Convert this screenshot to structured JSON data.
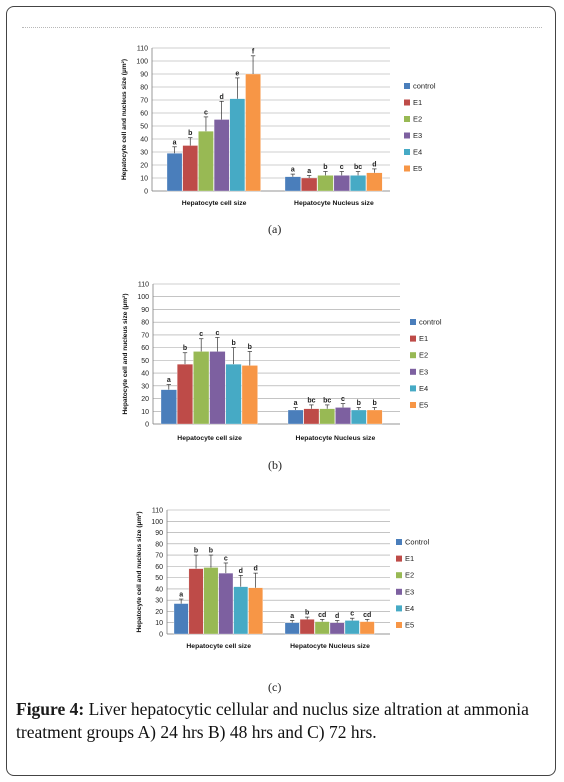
{
  "caption": {
    "title": "Figure 4:",
    "text": "Liver hepatocytic cellular and nuclus size altration at ammonia treatment groups A) 24 hrs B) 48 hrs and C) 72 hrs."
  },
  "panel_labels": [
    "(a)",
    "(b)",
    "(c)"
  ],
  "chart_data": [
    {
      "type": "bar",
      "ylabel": "Hepatocyte cell and nucleus size (µm²)",
      "ylim": [
        0,
        110
      ],
      "yticks": [
        0,
        10,
        20,
        30,
        40,
        50,
        60,
        70,
        80,
        90,
        100,
        110
      ],
      "categories": [
        "Hepatocyte cell size",
        "Hepatocyte Nucleus size"
      ],
      "legend_position": "right",
      "series": [
        {
          "name": "control",
          "color": "#4a7ebb",
          "values": [
            29,
            11
          ],
          "errors": [
            5,
            2
          ],
          "letters": [
            "a",
            "a"
          ]
        },
        {
          "name": "E1",
          "color": "#be4b48",
          "values": [
            35,
            10
          ],
          "errors": [
            6,
            2
          ],
          "letters": [
            "b",
            "a"
          ]
        },
        {
          "name": "E2",
          "color": "#98b954",
          "values": [
            46,
            12
          ],
          "errors": [
            11,
            3
          ],
          "letters": [
            "c",
            "b"
          ]
        },
        {
          "name": "E3",
          "color": "#7d60a0",
          "values": [
            55,
            12
          ],
          "errors": [
            14,
            3
          ],
          "letters": [
            "d",
            "c"
          ]
        },
        {
          "name": "E4",
          "color": "#46aac5",
          "values": [
            71,
            12
          ],
          "errors": [
            16,
            3
          ],
          "letters": [
            "e",
            "bc"
          ]
        },
        {
          "name": "E5",
          "color": "#f79646",
          "values": [
            90,
            14
          ],
          "errors": [
            14,
            3
          ],
          "letters": [
            "f",
            "d"
          ]
        }
      ]
    },
    {
      "type": "bar",
      "ylabel": "Hepatocyte cell and nucleus size (µm²)",
      "ylim": [
        0,
        110
      ],
      "yticks": [
        0,
        10,
        20,
        30,
        40,
        50,
        60,
        70,
        80,
        90,
        100,
        110
      ],
      "categories": [
        "Hepatocyte cell size",
        "Hepatocyte Nucleus size"
      ],
      "legend_position": "right",
      "series": [
        {
          "name": "control",
          "color": "#4a7ebb",
          "values": [
            27,
            11
          ],
          "errors": [
            4,
            2
          ],
          "letters": [
            "a",
            "a"
          ]
        },
        {
          "name": "E1",
          "color": "#be4b48",
          "values": [
            47,
            12
          ],
          "errors": [
            9,
            3
          ],
          "letters": [
            "b",
            "bc"
          ]
        },
        {
          "name": "E2",
          "color": "#98b954",
          "values": [
            57,
            12
          ],
          "errors": [
            10,
            3
          ],
          "letters": [
            "c",
            "bc"
          ]
        },
        {
          "name": "E3",
          "color": "#7d60a0",
          "values": [
            57,
            13
          ],
          "errors": [
            11,
            3
          ],
          "letters": [
            "c",
            "c"
          ]
        },
        {
          "name": "E4",
          "color": "#46aac5",
          "values": [
            47,
            11
          ],
          "errors": [
            13,
            2
          ],
          "letters": [
            "b",
            "b"
          ]
        },
        {
          "name": "E5",
          "color": "#f79646",
          "values": [
            46,
            11
          ],
          "errors": [
            11,
            2
          ],
          "letters": [
            "b",
            "b"
          ]
        }
      ]
    },
    {
      "type": "bar",
      "ylabel": "Hepatocyte cell and nucleus size (µm²)",
      "ylim": [
        0,
        110
      ],
      "yticks": [
        0,
        10,
        20,
        30,
        40,
        50,
        60,
        70,
        80,
        90,
        100,
        110
      ],
      "categories": [
        "Hepatocyte cell size",
        "Hepatocyte Nucleus size"
      ],
      "legend_position": "right",
      "series": [
        {
          "name": "Control",
          "color": "#4a7ebb",
          "values": [
            27,
            10
          ],
          "errors": [
            4,
            2
          ],
          "letters": [
            "a",
            "a"
          ]
        },
        {
          "name": "E1",
          "color": "#be4b48",
          "values": [
            58,
            13
          ],
          "errors": [
            12,
            2
          ],
          "letters": [
            "b",
            "b"
          ]
        },
        {
          "name": "E2",
          "color": "#98b954",
          "values": [
            59,
            11
          ],
          "errors": [
            11,
            2
          ],
          "letters": [
            "b",
            "cd"
          ]
        },
        {
          "name": "E3",
          "color": "#7d60a0",
          "values": [
            54,
            10
          ],
          "errors": [
            9,
            2
          ],
          "letters": [
            "c",
            "d"
          ]
        },
        {
          "name": "E4",
          "color": "#46aac5",
          "values": [
            42,
            12
          ],
          "errors": [
            10,
            2
          ],
          "letters": [
            "d",
            "c"
          ]
        },
        {
          "name": "E5",
          "color": "#f79646",
          "values": [
            41,
            11
          ],
          "errors": [
            13,
            2
          ],
          "letters": [
            "d",
            "cd"
          ]
        }
      ]
    }
  ]
}
